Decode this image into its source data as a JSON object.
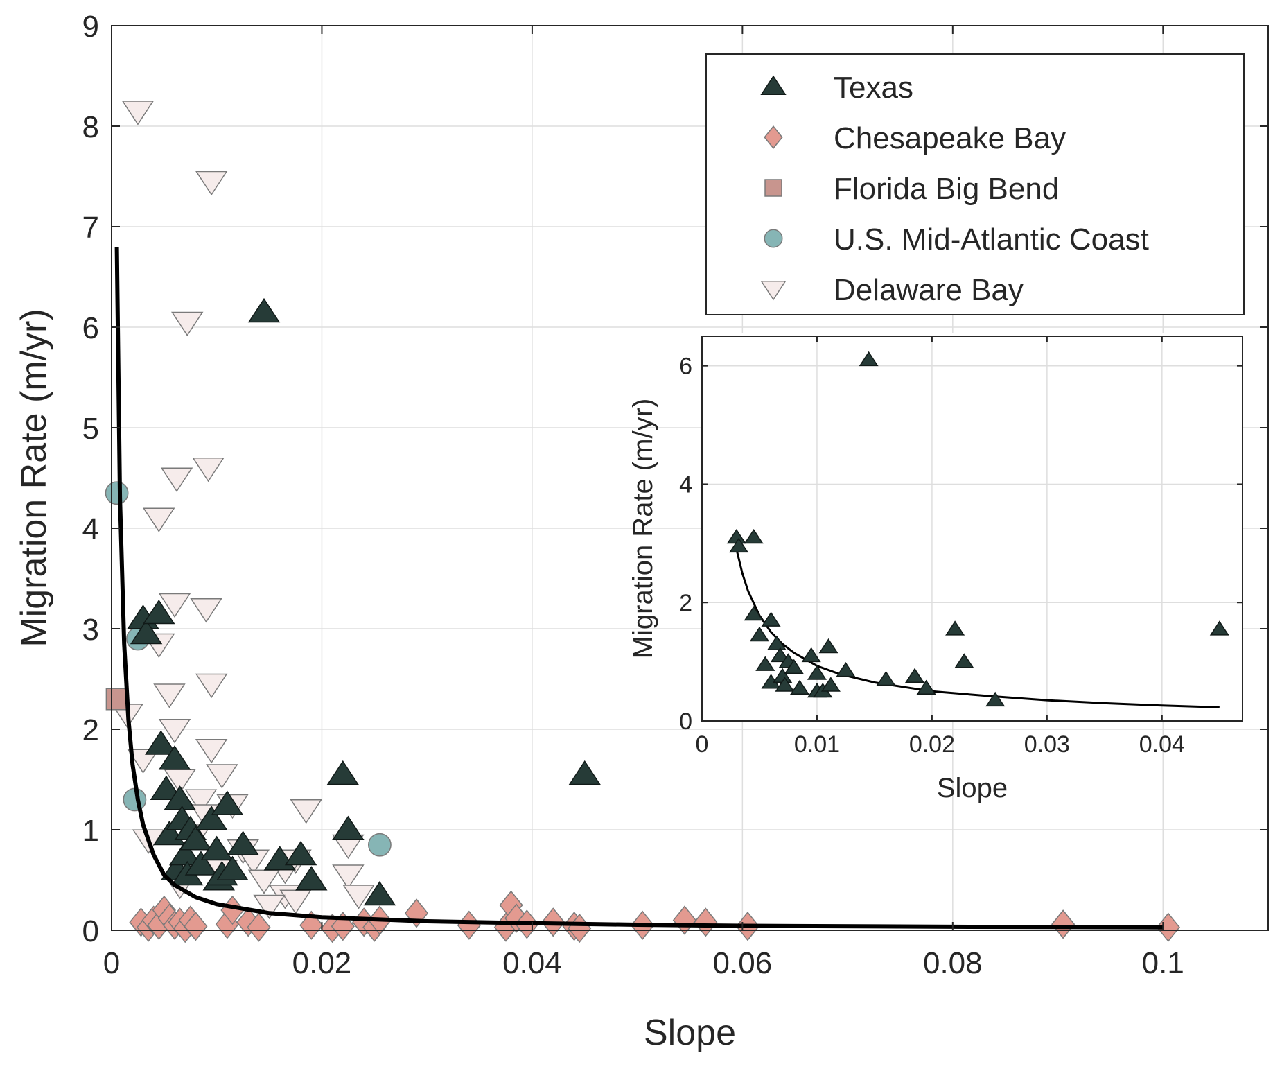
{
  "chart_data": [
    {
      "type": "scatter",
      "xlabel": "Slope",
      "ylabel": "Migration Rate (m/yr)",
      "xlim": [
        0,
        0.11
      ],
      "ylim": [
        0,
        9
      ],
      "xticks": [
        0,
        0.02,
        0.04,
        0.06,
        0.08,
        0.1
      ],
      "xtick_labels": [
        "0",
        "0.02",
        "0.04",
        "0.06",
        "0.08",
        "0.1"
      ],
      "yticks": [
        0,
        1,
        2,
        3,
        4,
        5,
        6,
        7,
        8,
        9
      ],
      "ytick_labels": [
        "0",
        "1",
        "2",
        "3",
        "4",
        "5",
        "6",
        "7",
        "8",
        "9"
      ],
      "grid": true,
      "legend_position": "top-right",
      "series": [
        {
          "name": "Texas",
          "marker": "triangle-up",
          "color": "#263b37",
          "points": [
            [
              0.003,
              3.1
            ],
            [
              0.0033,
              2.95
            ],
            [
              0.0045,
              3.15
            ],
            [
              0.0047,
              1.85
            ],
            [
              0.0052,
              1.4
            ],
            [
              0.0055,
              0.95
            ],
            [
              0.006,
              1.7
            ],
            [
              0.0062,
              0.6
            ],
            [
              0.0065,
              1.3
            ],
            [
              0.0067,
              1.1
            ],
            [
              0.007,
              0.75
            ],
            [
              0.0072,
              0.55
            ],
            [
              0.0075,
              1.0
            ],
            [
              0.008,
              0.9
            ],
            [
              0.0085,
              0.65
            ],
            [
              0.0095,
              1.1
            ],
            [
              0.01,
              0.8
            ],
            [
              0.0102,
              0.5
            ],
            [
              0.0105,
              0.55
            ],
            [
              0.011,
              1.25
            ],
            [
              0.0115,
              0.6
            ],
            [
              0.0125,
              0.85
            ],
            [
              0.016,
              0.7
            ],
            [
              0.018,
              0.75
            ],
            [
              0.019,
              0.5
            ],
            [
              0.022,
              1.55
            ],
            [
              0.0225,
              1.0
            ],
            [
              0.0255,
              0.35
            ],
            [
              0.0145,
              6.15
            ],
            [
              0.045,
              1.55
            ]
          ]
        },
        {
          "name": "Chesapeake Bay",
          "marker": "diamond",
          "color": "#e39a90",
          "points": [
            [
              0.0028,
              0.08
            ],
            [
              0.0035,
              0.03
            ],
            [
              0.004,
              0.1
            ],
            [
              0.0045,
              0.05
            ],
            [
              0.005,
              0.2
            ],
            [
              0.0055,
              0.12
            ],
            [
              0.006,
              0.05
            ],
            [
              0.0065,
              0.08
            ],
            [
              0.007,
              0.02
            ],
            [
              0.0075,
              0.1
            ],
            [
              0.008,
              0.04
            ],
            [
              0.011,
              0.06
            ],
            [
              0.0115,
              0.2
            ],
            [
              0.013,
              0.08
            ],
            [
              0.014,
              0.03
            ],
            [
              0.019,
              0.05
            ],
            [
              0.021,
              0.02
            ],
            [
              0.022,
              0.04
            ],
            [
              0.024,
              0.08
            ],
            [
              0.025,
              0.03
            ],
            [
              0.0255,
              0.1
            ],
            [
              0.029,
              0.17
            ],
            [
              0.034,
              0.05
            ],
            [
              0.0375,
              0.03
            ],
            [
              0.038,
              0.25
            ],
            [
              0.0385,
              0.12
            ],
            [
              0.0395,
              0.06
            ],
            [
              0.042,
              0.08
            ],
            [
              0.044,
              0.04
            ],
            [
              0.0445,
              0.02
            ],
            [
              0.0505,
              0.05
            ],
            [
              0.0545,
              0.1
            ],
            [
              0.0565,
              0.08
            ],
            [
              0.0605,
              0.04
            ],
            [
              0.0905,
              0.06
            ],
            [
              0.1005,
              0.03
            ]
          ]
        },
        {
          "name": "Florida Big Bend",
          "marker": "square",
          "color": "#c8958e",
          "points": [
            [
              0.0005,
              2.3
            ]
          ]
        },
        {
          "name": "U.S. Mid-Atlantic Coast",
          "marker": "circle",
          "color": "#86b5b5",
          "points": [
            [
              0.0005,
              4.35
            ],
            [
              0.0025,
              2.9
            ],
            [
              0.0022,
              1.3
            ],
            [
              0.0255,
              0.85
            ]
          ]
        },
        {
          "name": "Delaware Bay",
          "marker": "triangle-down",
          "color": "#f6eceb",
          "points": [
            [
              0.0025,
              8.15
            ],
            [
              0.0095,
              7.45
            ],
            [
              0.0072,
              6.05
            ],
            [
              0.0092,
              4.6
            ],
            [
              0.0062,
              4.5
            ],
            [
              0.0045,
              4.1
            ],
            [
              0.006,
              3.25
            ],
            [
              0.009,
              3.2
            ],
            [
              0.0045,
              2.85
            ],
            [
              0.0055,
              2.35
            ],
            [
              0.0095,
              2.45
            ],
            [
              0.0015,
              2.15
            ],
            [
              0.006,
              2.0
            ],
            [
              0.0095,
              1.8
            ],
            [
              0.003,
              1.7
            ],
            [
              0.0105,
              1.55
            ],
            [
              0.0065,
              1.5
            ],
            [
              0.0085,
              1.3
            ],
            [
              0.0115,
              1.25
            ],
            [
              0.009,
              1.15
            ],
            [
              0.0035,
              0.9
            ],
            [
              0.008,
              0.95
            ],
            [
              0.0125,
              0.8
            ],
            [
              0.0135,
              0.7
            ],
            [
              0.0175,
              0.7
            ],
            [
              0.0185,
              1.2
            ],
            [
              0.0225,
              0.85
            ],
            [
              0.0225,
              0.55
            ],
            [
              0.0165,
              0.6
            ],
            [
              0.0145,
              0.5
            ],
            [
              0.0165,
              0.35
            ],
            [
              0.0175,
              0.3
            ],
            [
              0.015,
              0.25
            ],
            [
              0.0235,
              0.35
            ],
            [
              0.0065,
              0.45
            ],
            [
              0.0105,
              0.6
            ]
          ]
        }
      ],
      "fit_curve": {
        "color": "#000000",
        "x": [
          0.0005,
          0.0008,
          0.0012,
          0.0016,
          0.002,
          0.0025,
          0.003,
          0.004,
          0.005,
          0.006,
          0.008,
          0.01,
          0.015,
          0.02,
          0.03,
          0.04,
          0.05,
          0.06,
          0.08,
          0.1
        ],
        "y": [
          6.8,
          4.3,
          2.85,
          2.1,
          1.65,
          1.3,
          1.05,
          0.75,
          0.55,
          0.45,
          0.33,
          0.26,
          0.17,
          0.13,
          0.09,
          0.07,
          0.055,
          0.045,
          0.035,
          0.03
        ]
      }
    },
    {
      "type": "scatter",
      "xlabel": "Slope",
      "ylabel": "Migration Rate (m/yr)",
      "xlim": [
        0,
        0.047
      ],
      "ylim": [
        0,
        6.5
      ],
      "xticks": [
        0,
        0.01,
        0.02,
        0.03,
        0.04
      ],
      "xtick_labels": [
        "0",
        "0.01",
        "0.02",
        "0.03",
        "0.04"
      ],
      "yticks": [
        0,
        2,
        4,
        6
      ],
      "ytick_labels": [
        "0",
        "2",
        "4",
        "6"
      ],
      "grid": true,
      "series": [
        {
          "name": "Texas",
          "marker": "triangle-up",
          "color": "#263b37",
          "points": [
            [
              0.003,
              3.1
            ],
            [
              0.0032,
              2.95
            ],
            [
              0.0045,
              3.1
            ],
            [
              0.0045,
              1.8
            ],
            [
              0.005,
              1.45
            ],
            [
              0.0055,
              0.95
            ],
            [
              0.006,
              1.7
            ],
            [
              0.006,
              0.65
            ],
            [
              0.0065,
              1.3
            ],
            [
              0.0068,
              1.1
            ],
            [
              0.007,
              0.75
            ],
            [
              0.0072,
              0.6
            ],
            [
              0.0075,
              1.0
            ],
            [
              0.008,
              0.9
            ],
            [
              0.0085,
              0.55
            ],
            [
              0.0095,
              1.1
            ],
            [
              0.01,
              0.8
            ],
            [
              0.01,
              0.5
            ],
            [
              0.0105,
              0.5
            ],
            [
              0.011,
              1.25
            ],
            [
              0.0112,
              0.6
            ],
            [
              0.0125,
              0.85
            ],
            [
              0.016,
              0.7
            ],
            [
              0.0185,
              0.75
            ],
            [
              0.0195,
              0.55
            ],
            [
              0.022,
              1.55
            ],
            [
              0.0228,
              1.0
            ],
            [
              0.0255,
              0.35
            ],
            [
              0.0145,
              6.1
            ],
            [
              0.045,
              1.55
            ]
          ]
        }
      ],
      "fit_curve": {
        "color": "#000000",
        "x": [
          0.003,
          0.0035,
          0.004,
          0.005,
          0.006,
          0.007,
          0.008,
          0.01,
          0.012,
          0.015,
          0.02,
          0.025,
          0.03,
          0.035,
          0.04,
          0.045
        ],
        "y": [
          2.9,
          2.5,
          2.2,
          1.78,
          1.5,
          1.3,
          1.15,
          0.93,
          0.79,
          0.65,
          0.5,
          0.42,
          0.35,
          0.3,
          0.26,
          0.23
        ]
      }
    }
  ]
}
